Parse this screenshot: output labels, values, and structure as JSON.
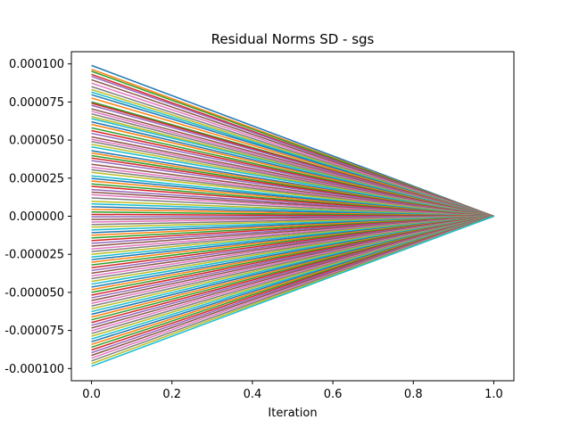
{
  "chart_data": {
    "type": "line",
    "title": "Residual Norms SD - sgs",
    "xlabel": "Iteration",
    "ylabel": "",
    "xlim": [
      -0.05,
      1.05
    ],
    "ylim": [
      -0.000108,
      0.000108
    ],
    "x_ticks": [
      0.0,
      0.2,
      0.4,
      0.6,
      0.8,
      1.0
    ],
    "x_tick_labels": [
      "0.0",
      "0.2",
      "0.4",
      "0.6",
      "0.8",
      "1.0"
    ],
    "y_ticks": [
      0.0001,
      7.5e-05,
      5e-05,
      2.5e-05,
      0.0,
      -2.5e-05,
      -5e-05,
      -7.5e-05,
      -0.0001
    ],
    "y_tick_labels": [
      "0.000100",
      "0.000075",
      "0.000050",
      "0.000025",
      "0.000000",
      "-0.000025",
      "-0.000050",
      "-0.000075",
      "-0.000100"
    ],
    "grid": false,
    "legend": "none",
    "colors": [
      "#1f77b4",
      "#ff7f0e",
      "#2ca02c",
      "#d62728",
      "#9467bd",
      "#8c564b",
      "#e377c2",
      "#7f7f7f",
      "#bcbd22",
      "#17becf"
    ],
    "x": [
      0,
      1
    ],
    "end_value": 0,
    "series_start_values": [
      9.9e-05,
      9.65e-05,
      9.52e-05,
      9.31e-05,
      9.18e-05,
      8.96e-05,
      8.74e-05,
      8.51e-05,
      8.32e-05,
      8.15e-05,
      7.98e-05,
      7.76e-05,
      7.51e-05,
      7.42e-05,
      7.28e-05,
      7.05e-05,
      6.89e-05,
      6.72e-05,
      6.54e-05,
      6.41e-05,
      6.2e-05,
      6.03e-05,
      5.8e-05,
      5.62e-05,
      5.44e-05,
      5.21e-05,
      5.05e-05,
      4.9e-05,
      4.72e-05,
      4.55e-05,
      4.3e-05,
      4.15e-05,
      3.98e-05,
      3.82e-05,
      3.65e-05,
      3.41e-05,
      3.22e-05,
      3.05e-05,
      2.88e-05,
      2.65e-05,
      2.48e-05,
      2.31e-05,
      2.12e-05,
      1.96e-05,
      1.75e-05,
      1.58e-05,
      1.41e-05,
      1.2e-05,
      9.8e-06,
      8.1e-06,
      6.2e-06,
      4.5e-06,
      2.8e-06,
      1.2e-06,
      -4e-07,
      -2.1e-06,
      -3.8e-06,
      -5.5e-06,
      -7.2e-06,
      -9e-06,
      -1.08e-05,
      -1.25e-05,
      -1.43e-05,
      -1.6e-05,
      -1.78e-05,
      -1.96e-05,
      -2.15e-05,
      -2.32e-05,
      -2.5e-05,
      -2.68e-05,
      -2.85e-05,
      -3.02e-05,
      -3.2e-05,
      -3.38e-05,
      -3.56e-05,
      -3.74e-05,
      -3.92e-05,
      -4.1e-05,
      -4.28e-05,
      -4.46e-05,
      -4.65e-05,
      -4.82e-05,
      -5e-05,
      -5.18e-05,
      -5.36e-05,
      -5.54e-05,
      -5.72e-05,
      -5.9e-05,
      -6.08e-05,
      -6.26e-05,
      -6.44e-05,
      -6.62e-05,
      -6.8e-05,
      -6.98e-05,
      -7.16e-05,
      -7.34e-05,
      -7.52e-05,
      -7.7e-05,
      -7.88e-05,
      -8.06e-05,
      -8.24e-05,
      -8.42e-05,
      -8.6e-05,
      -8.78e-05,
      -8.96e-05,
      -9.14e-05,
      -9.32e-05,
      -9.5e-05,
      -9.68e-05,
      -9.85e-05
    ]
  }
}
